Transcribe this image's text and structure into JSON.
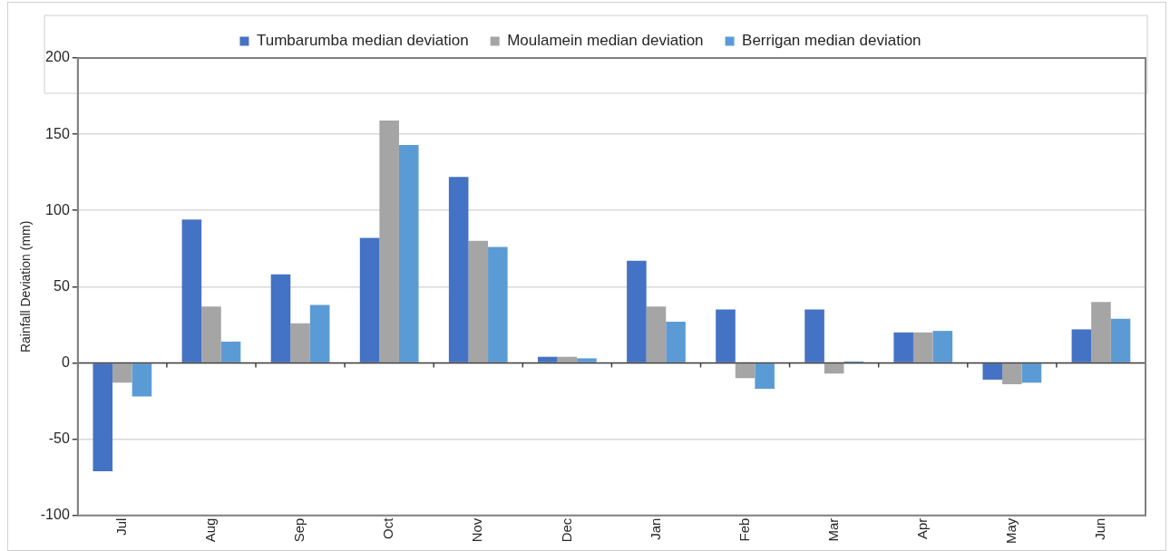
{
  "chart_data": {
    "type": "bar",
    "ylabel": "Rainfall Deviation (mm)",
    "categories": [
      "Jul",
      "Aug",
      "Sep",
      "Oct",
      "Nov",
      "Dec",
      "Jan",
      "Feb",
      "Mar",
      "Apr",
      "May",
      "Jun"
    ],
    "series": [
      {
        "name": "Tumbarumba median deviation",
        "color": "#4472c4",
        "values": [
          -71,
          94,
          58,
          82,
          122,
          4,
          67,
          35,
          35,
          20,
          -11,
          22
        ]
      },
      {
        "name": "Moulamein median deviation",
        "color": "#a5a5a5",
        "values": [
          -13,
          37,
          26,
          159,
          80,
          4,
          37,
          -10,
          -7,
          20,
          -14,
          40
        ]
      },
      {
        "name": "Berrigan median deviation",
        "color": "#5b9bd5",
        "values": [
          -22,
          14,
          38,
          143,
          76,
          3,
          27,
          -17,
          1,
          21,
          -13,
          29
        ]
      }
    ],
    "ylim": [
      -100,
      200
    ],
    "yticks": [
      -100,
      -50,
      0,
      50,
      100,
      150,
      200
    ],
    "grid": "y",
    "legend": "top"
  }
}
